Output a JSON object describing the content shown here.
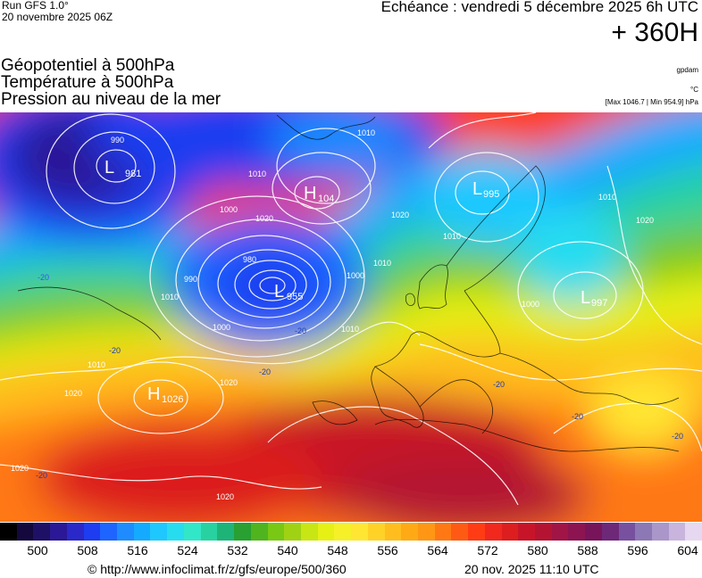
{
  "header": {
    "run_label": "Run GFS 1.0°",
    "run_date": "20 novembre 2025 06Z",
    "echeance": "Echéance : vendredi 5 décembre 2025 6h UTC",
    "lead_time": "+ 360H"
  },
  "titles": {
    "line1": "Géopotentiel à 500hPa",
    "line2": "Température à 500hPa",
    "line3": "Pression au niveau de la mer"
  },
  "units": {
    "geopotential": "gpdam",
    "temperature": "°C",
    "max_min": "[Max 1046.7 | Min 954.9] hPa"
  },
  "pressure_centers": [
    {
      "type": "L",
      "value": "981"
    },
    {
      "type": "H",
      "value": "104"
    },
    {
      "type": "L",
      "value": "995"
    },
    {
      "type": "L",
      "value": "955"
    },
    {
      "type": "L",
      "value": "997"
    },
    {
      "type": "H",
      "value": "1026"
    }
  ],
  "isobar_labels": [
    "990",
    "1010",
    "1000",
    "1020",
    "1020",
    "1010",
    "1010",
    "980",
    "990",
    "1010",
    "1000",
    "1000",
    "1010",
    "1010",
    "1020",
    "1010",
    "1000",
    "1020",
    "1020",
    "1020",
    "1020",
    "1010"
  ],
  "temperature_labels": [
    "-20",
    "-20",
    "-20",
    "-20",
    "-20",
    "-20",
    "-20",
    "-20"
  ],
  "colorbar": {
    "colors": [
      "#000000",
      "#14083c",
      "#1e1064",
      "#2a1896",
      "#2a28c8",
      "#1e3cf0",
      "#1e64ff",
      "#1e8cff",
      "#14aaff",
      "#1ec8ff",
      "#28dcf0",
      "#32e6c8",
      "#28d2a0",
      "#1eb478",
      "#28a032",
      "#50b41e",
      "#78c814",
      "#a0d214",
      "#c8e614",
      "#e6f014",
      "#f5f028",
      "#ffe632",
      "#ffd228",
      "#ffbe1e",
      "#ffaa14",
      "#ff9614",
      "#ff7814",
      "#ff5a14",
      "#ff3c14",
      "#f0281e",
      "#dc1e1e",
      "#c81428",
      "#b41432",
      "#a01446",
      "#8c1450",
      "#78145a",
      "#6e2878",
      "#7850a0",
      "#8c78b4",
      "#aa96c8",
      "#c8b4dc",
      "#e6d8f0"
    ],
    "ticks": [
      "500",
      "508",
      "516",
      "524",
      "532",
      "540",
      "548",
      "556",
      "564",
      "572",
      "580",
      "588",
      "596",
      "604"
    ]
  },
  "footer": {
    "copyright": "© http://www.infoclimat.fr/z/gfs/europe/500/360",
    "issued": "20 nov. 2025 11:10 UTC"
  }
}
